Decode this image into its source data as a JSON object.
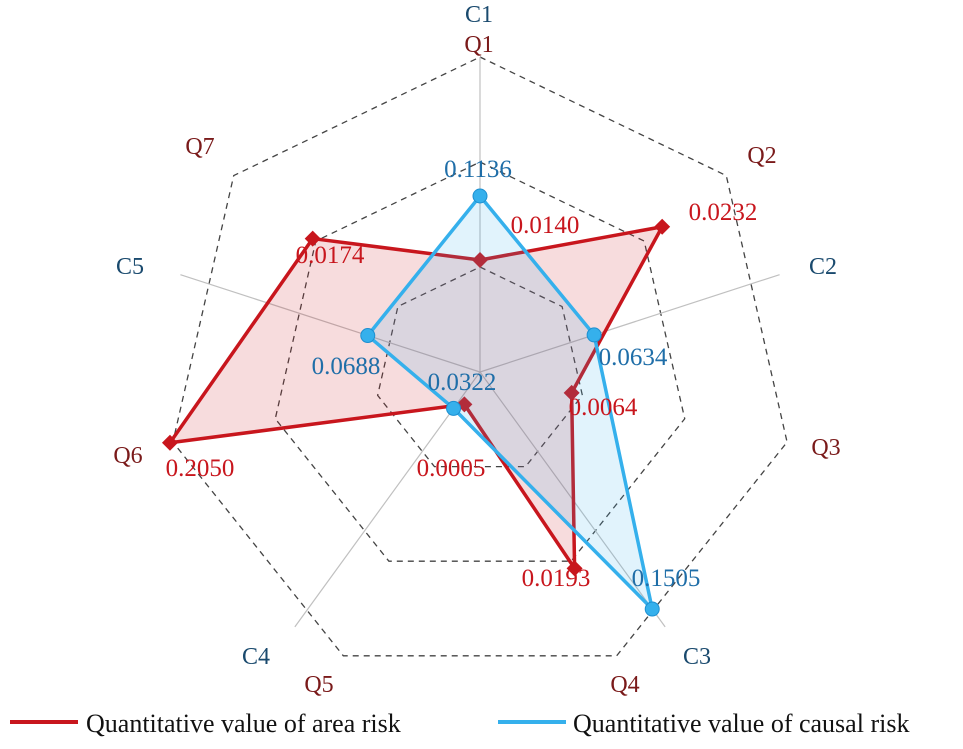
{
  "chart_data": {
    "type": "radar",
    "colors": {
      "area": "#c8161d",
      "causal": "#35b0ec",
      "area_label": "#c8161d",
      "causal_label": "#1f6ea8",
      "q_axis_label": "#7a1a1a",
      "c_axis_label": "#1a4a6e",
      "grid": "#444444",
      "spoke": "#c0c0c0"
    },
    "grid_levels": 3,
    "series": [
      {
        "name": "Quantitative value of area risk",
        "key": "area",
        "axes": [
          "Q1",
          "Q2",
          "Q3",
          "Q4",
          "Q5",
          "Q6",
          "Q7"
        ],
        "values": [
          0.014,
          0.0232,
          0.0064,
          0.0193,
          0.0005,
          0.205,
          0.0174
        ],
        "labels": [
          "0.0140",
          "0.0232",
          "0.0064",
          "0.0193",
          "0.0005",
          "0.2050",
          "0.0174"
        ]
      },
      {
        "name": "Quantitative value of causal risk",
        "key": "causal",
        "axes": [
          "C1",
          "C2",
          "C3",
          "C4",
          "C5"
        ],
        "values": [
          0.1136,
          0.0634,
          0.1505,
          0.0322,
          0.0688
        ],
        "labels": [
          "0.1136",
          "0.0634",
          "0.1505",
          "0.0322",
          "0.0688"
        ]
      }
    ],
    "q_axes": [
      "Q1",
      "Q2",
      "Q3",
      "Q4",
      "Q5",
      "Q6",
      "Q7"
    ],
    "c_axes": [
      "C1",
      "C2",
      "C3",
      "C4",
      "C5"
    ],
    "legend": {
      "placement": "bottom",
      "entries": [
        "Quantitative value of area risk",
        "Quantitative value of causal risk"
      ]
    }
  }
}
